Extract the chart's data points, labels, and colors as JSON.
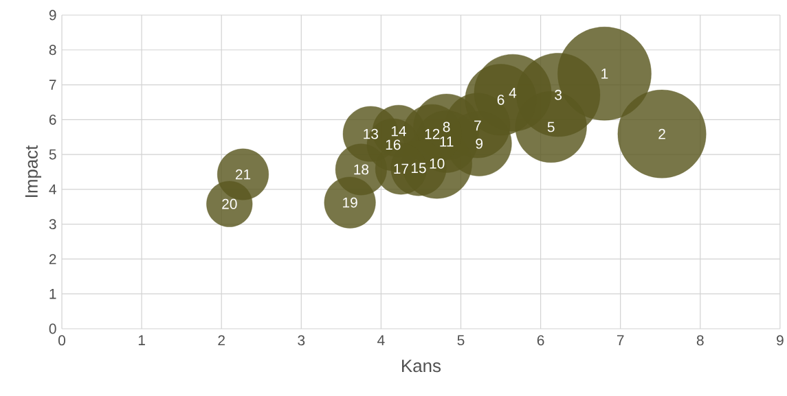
{
  "chart_data": {
    "type": "bubble",
    "xlabel": "Kans",
    "ylabel": "Impact",
    "x": [
      6.8,
      7.52,
      6.22,
      5.65,
      6.13,
      5.5,
      5.21,
      4.82,
      5.23,
      4.7,
      4.82,
      4.64,
      3.87,
      4.22,
      4.47,
      4.15,
      4.25,
      3.75,
      3.61,
      2.1,
      2.27
    ],
    "values": [
      7.32,
      5.59,
      6.71,
      6.77,
      5.79,
      6.57,
      5.83,
      5.79,
      5.31,
      4.74,
      5.37,
      5.59,
      5.59,
      5.67,
      4.61,
      5.28,
      4.59,
      4.57,
      3.62,
      3.58,
      4.43
    ],
    "sizes": [
      1,
      0.89,
      0.8,
      0.68,
      0.58,
      0.58,
      0.48,
      0.5,
      0.48,
      0.56,
      0.44,
      0.4,
      0.35,
      0.31,
      0.35,
      0.31,
      0.3,
      0.3,
      0.3,
      0.24,
      0.3
    ],
    "color": "#5a5820",
    "marker": "circle",
    "xlim": [
      0,
      9
    ],
    "ylim": [
      0,
      9
    ],
    "xticks": [
      0,
      1,
      2,
      3,
      4,
      5,
      6,
      7,
      8,
      9
    ],
    "yticks": [
      0,
      1,
      2,
      3,
      4,
      5,
      6,
      7,
      8,
      9
    ],
    "grid": true,
    "annotations": [
      {
        "text": "1",
        "x": 6.8,
        "y": 7.32
      },
      {
        "text": "2",
        "x": 7.52,
        "y": 5.59
      },
      {
        "text": "3",
        "x": 6.22,
        "y": 6.71
      },
      {
        "text": "4",
        "x": 5.65,
        "y": 6.77
      },
      {
        "text": "5",
        "x": 6.13,
        "y": 5.79
      },
      {
        "text": "6",
        "x": 5.5,
        "y": 6.57
      },
      {
        "text": "7",
        "x": 5.21,
        "y": 5.83
      },
      {
        "text": "8",
        "x": 4.82,
        "y": 5.79
      },
      {
        "text": "9",
        "x": 5.23,
        "y": 5.31
      },
      {
        "text": "10",
        "x": 4.7,
        "y": 4.74
      },
      {
        "text": "11",
        "x": 4.82,
        "y": 5.37
      },
      {
        "text": "12",
        "x": 4.64,
        "y": 5.59
      },
      {
        "text": "13",
        "x": 3.87,
        "y": 5.59
      },
      {
        "text": "14",
        "x": 4.22,
        "y": 5.67
      },
      {
        "text": "15",
        "x": 4.47,
        "y": 4.61
      },
      {
        "text": "16",
        "x": 4.15,
        "y": 5.28
      },
      {
        "text": "17",
        "x": 4.25,
        "y": 4.59
      },
      {
        "text": "18",
        "x": 3.75,
        "y": 4.57
      },
      {
        "text": "19",
        "x": 3.61,
        "y": 3.62
      },
      {
        "text": "20",
        "x": 2.1,
        "y": 3.58
      },
      {
        "text": "21",
        "x": 2.27,
        "y": 4.43
      }
    ]
  }
}
